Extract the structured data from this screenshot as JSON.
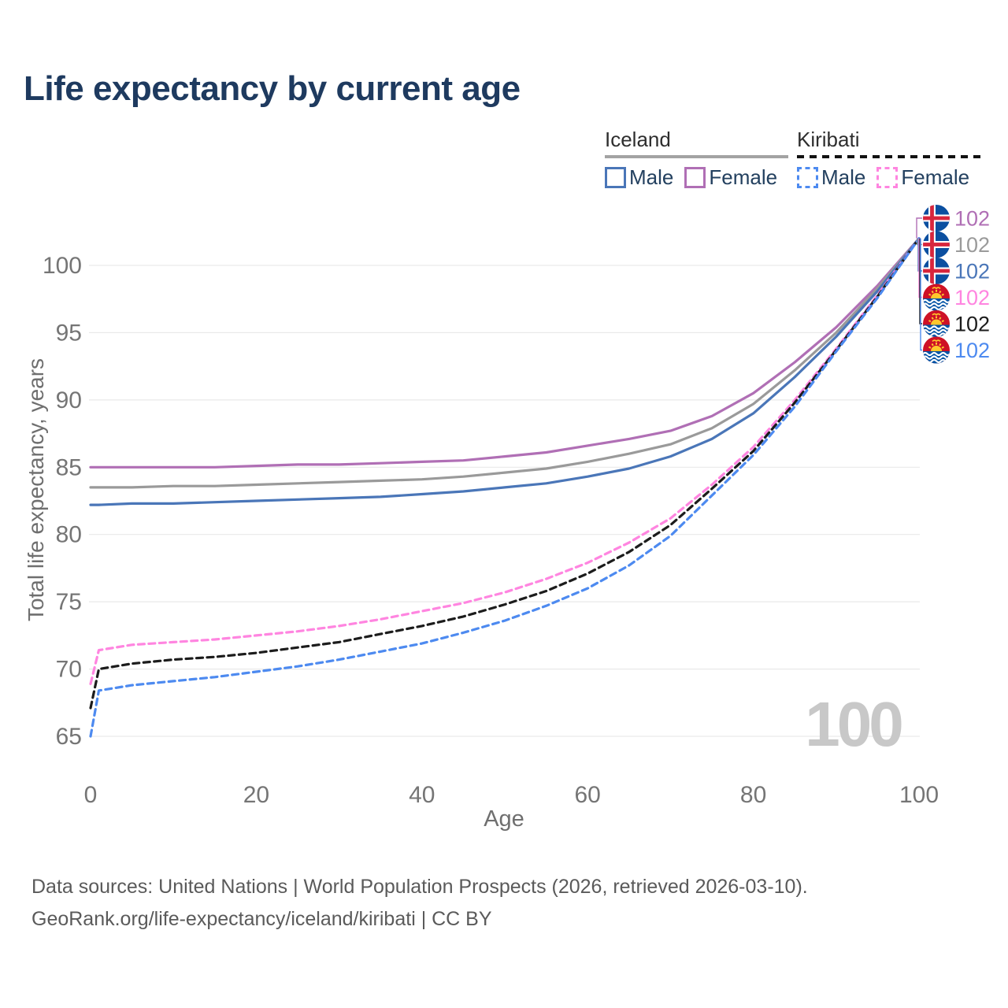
{
  "title": "Life expectancy by current age",
  "legend": {
    "groups": [
      {
        "country": "Iceland",
        "line_style": "solid",
        "items": [
          {
            "label": "Male",
            "color": "#4a76b8"
          },
          {
            "label": "Female",
            "color": "#b06fb5"
          }
        ]
      },
      {
        "country": "Kiribati",
        "line_style": "dashed",
        "items": [
          {
            "label": "Male",
            "color": "#4d8af0"
          },
          {
            "label": "Female",
            "color": "#ff85e0"
          }
        ]
      }
    ]
  },
  "watermark": "100",
  "colors": {
    "title": "#1e3a5f",
    "grid": "#e9e9e9",
    "axis_text": "#757575",
    "watermark": "#c8c8c8"
  },
  "footer": {
    "line1": "Data sources: United Nations | World Population Prospects (2026, retrieved 2026-03-10).",
    "line2": "GeoRank.org/life-expectancy/iceland/kiribati | CC BY"
  },
  "chart_data": {
    "type": "line",
    "title": "Life expectancy by current age",
    "xlabel": "Age",
    "ylabel": "Total life expectancy, years",
    "xlim": [
      0,
      100
    ],
    "ylim": [
      65,
      102
    ],
    "x_ticks": [
      0,
      20,
      40,
      60,
      80,
      100
    ],
    "y_ticks": [
      65,
      70,
      75,
      80,
      85,
      90,
      95,
      100
    ],
    "grid": true,
    "legend_position": "top-right",
    "x": [
      0,
      1,
      5,
      10,
      15,
      20,
      25,
      30,
      35,
      40,
      45,
      50,
      55,
      60,
      65,
      70,
      75,
      80,
      85,
      90,
      95,
      100
    ],
    "series": [
      {
        "name": "Iceland Female",
        "country": "Iceland",
        "sex": "Female",
        "color": "#b06fb5",
        "dash": false,
        "flag_icon": "iceland-flag-icon",
        "end_value": "102",
        "values": [
          85.0,
          85.0,
          85.0,
          85.0,
          85.0,
          85.1,
          85.2,
          85.2,
          85.3,
          85.4,
          85.5,
          85.8,
          86.1,
          86.6,
          87.1,
          87.7,
          88.8,
          90.5,
          92.8,
          95.4,
          98.5,
          102
        ]
      },
      {
        "name": "Iceland Both sexes",
        "country": "Iceland",
        "sex": "Both",
        "color": "#9a9a9a",
        "dash": false,
        "flag_icon": "iceland-flag-icon",
        "end_value": "102",
        "values": [
          83.5,
          83.5,
          83.5,
          83.6,
          83.6,
          83.7,
          83.8,
          83.9,
          84.0,
          84.1,
          84.3,
          84.6,
          84.9,
          85.4,
          86.0,
          86.7,
          87.9,
          89.7,
          92.2,
          95.0,
          98.3,
          102
        ]
      },
      {
        "name": "Iceland Male",
        "country": "Iceland",
        "sex": "Male",
        "color": "#4a76b8",
        "dash": false,
        "flag_icon": "iceland-flag-icon",
        "end_value": "102",
        "values": [
          82.2,
          82.2,
          82.3,
          82.3,
          82.4,
          82.5,
          82.6,
          82.7,
          82.8,
          83.0,
          83.2,
          83.5,
          83.8,
          84.3,
          84.9,
          85.8,
          87.1,
          89.0,
          91.7,
          94.7,
          98.1,
          102
        ]
      },
      {
        "name": "Kiribati Female",
        "country": "Kiribati",
        "sex": "Female",
        "color": "#ff85e0",
        "dash": true,
        "flag_icon": "kiribati-flag-icon",
        "end_value": "102",
        "values": [
          68.9,
          71.4,
          71.8,
          72.0,
          72.2,
          72.5,
          72.8,
          73.2,
          73.7,
          74.3,
          74.9,
          75.7,
          76.7,
          77.9,
          79.4,
          81.2,
          83.7,
          86.5,
          90.0,
          93.8,
          97.8,
          102
        ]
      },
      {
        "name": "Kiribati Both sexes",
        "country": "Kiribati",
        "sex": "Both",
        "color": "#1c1c1c",
        "dash": true,
        "flag_icon": "kiribati-flag-icon",
        "end_value": "102",
        "values": [
          67.1,
          70.0,
          70.4,
          70.7,
          70.9,
          71.2,
          71.6,
          72.0,
          72.6,
          73.2,
          73.9,
          74.8,
          75.8,
          77.1,
          78.7,
          80.7,
          83.4,
          86.2,
          89.8,
          93.7,
          97.7,
          102
        ]
      },
      {
        "name": "Kiribati Male",
        "country": "Kiribati",
        "sex": "Male",
        "color": "#4d8af0",
        "dash": true,
        "flag_icon": "kiribati-flag-icon",
        "end_value": "102",
        "values": [
          65.0,
          68.4,
          68.8,
          69.1,
          69.4,
          69.8,
          70.2,
          70.7,
          71.3,
          71.9,
          72.7,
          73.6,
          74.7,
          76.0,
          77.7,
          79.9,
          82.9,
          85.9,
          89.5,
          93.6,
          97.6,
          102
        ]
      }
    ]
  }
}
